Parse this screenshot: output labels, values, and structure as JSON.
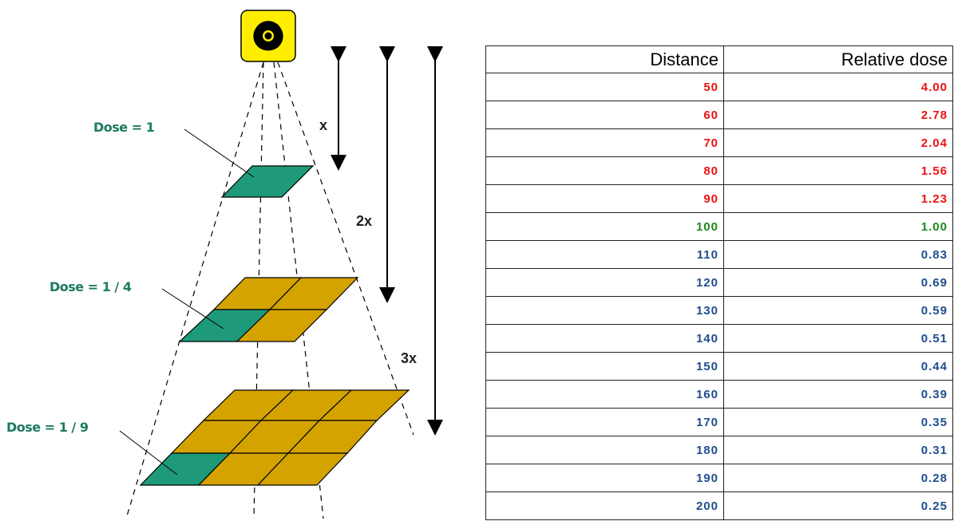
{
  "diagram": {
    "source_icon": "radiation-trefoil-icon",
    "labels": {
      "dose_1": "Dose = 1",
      "dose_2": "Dose = 1 / 4",
      "dose_3": "Dose = 1 / 9"
    },
    "distances": {
      "d1": "x",
      "d2": "2x",
      "d3": "3x"
    },
    "colors": {
      "teal_tile": "#1e9a7a",
      "gold_tile": "#d4a300",
      "label_green": "#1d7a62",
      "icon_yellow": "#ffee00"
    }
  },
  "table": {
    "headers": [
      "Distance",
      "Relative dose"
    ],
    "rows": [
      {
        "distance": "50",
        "dose": "4.00",
        "tone": "red"
      },
      {
        "distance": "60",
        "dose": "2.78",
        "tone": "red"
      },
      {
        "distance": "70",
        "dose": "2.04",
        "tone": "red"
      },
      {
        "distance": "80",
        "dose": "1.56",
        "tone": "red"
      },
      {
        "distance": "90",
        "dose": "1.23",
        "tone": "red"
      },
      {
        "distance": "100",
        "dose": "1.00",
        "tone": "green"
      },
      {
        "distance": "110",
        "dose": "0.83",
        "tone": "blue"
      },
      {
        "distance": "120",
        "dose": "0.69",
        "tone": "blue"
      },
      {
        "distance": "130",
        "dose": "0.59",
        "tone": "blue"
      },
      {
        "distance": "140",
        "dose": "0.51",
        "tone": "blue"
      },
      {
        "distance": "150",
        "dose": "0.44",
        "tone": "blue"
      },
      {
        "distance": "160",
        "dose": "0.39",
        "tone": "blue"
      },
      {
        "distance": "170",
        "dose": "0.35",
        "tone": "blue"
      },
      {
        "distance": "180",
        "dose": "0.31",
        "tone": "blue"
      },
      {
        "distance": "190",
        "dose": "0.28",
        "tone": "blue"
      },
      {
        "distance": "200",
        "dose": "0.25",
        "tone": "blue"
      }
    ]
  }
}
